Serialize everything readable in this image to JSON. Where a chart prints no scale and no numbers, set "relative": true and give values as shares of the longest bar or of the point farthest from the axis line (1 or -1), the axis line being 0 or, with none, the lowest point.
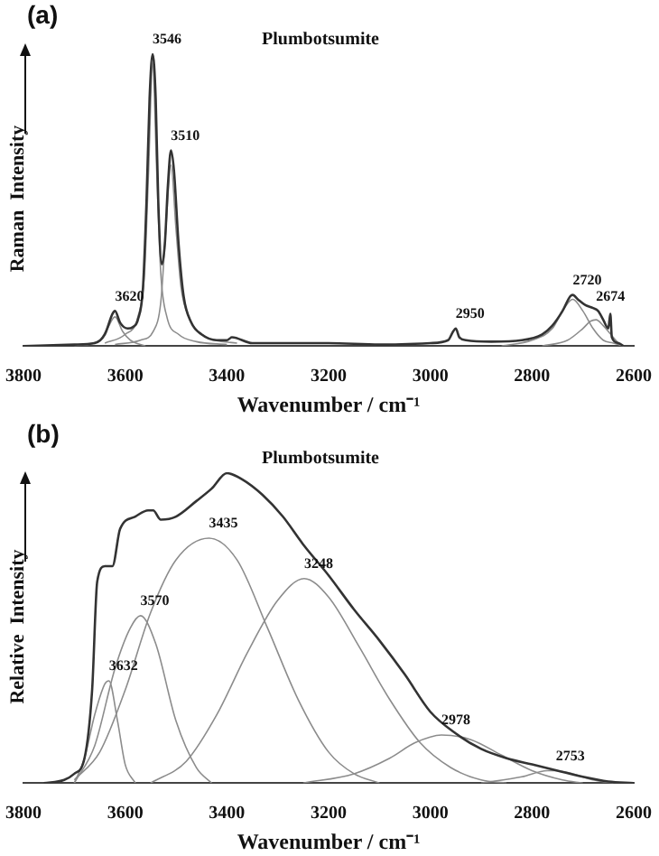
{
  "chart_data": [
    {
      "type": "line",
      "title": "Plumbotsumite",
      "xlabel": "Wavenumber / cm⁻¹",
      "ylabel": "Raman  Intensity",
      "relative": true,
      "grid": false,
      "legend": false,
      "marker": "none",
      "line_style": "solid",
      "xlim": [
        3800,
        2600
      ],
      "xticks": [
        3800,
        3600,
        3400,
        3200,
        3000,
        2800,
        2600
      ],
      "annotations": [
        "(a)",
        {
          "text": "3546",
          "x": 3546,
          "y": 1
        },
        {
          "text": "3510",
          "x": 3510,
          "y": 0.67
        },
        {
          "text": "3620",
          "x": 3620,
          "y": 0.12
        },
        {
          "text": "2950",
          "x": 2950,
          "y": 0.06
        },
        {
          "text": "2720",
          "x": 2720,
          "y": 0.175
        },
        {
          "text": "2674",
          "x": 2674,
          "y": 0.12
        }
      ],
      "series": [
        {
          "color": "#333333",
          "x": [
            3800,
            3700,
            3660,
            3640,
            3625,
            3620,
            3610,
            3595,
            3585,
            3575,
            3565,
            3558,
            3552,
            3546,
            3540,
            3535,
            3528,
            3522,
            3516,
            3510,
            3504,
            3495,
            3485,
            3470,
            3450,
            3420,
            3400,
            3390,
            3350,
            3300,
            3200,
            3100,
            3000,
            2965,
            2955,
            2950,
            2943,
            2930,
            2880,
            2820,
            2780,
            2760,
            2740,
            2725,
            2720,
            2710,
            2695,
            2680,
            2670,
            2660,
            2650,
            2646,
            2643,
            2630,
            2620
          ],
          "values": [
            0,
            0.005,
            0.01,
            0.04,
            0.11,
            0.12,
            0.08,
            0.06,
            0.065,
            0.09,
            0.2,
            0.5,
            0.85,
            1,
            0.85,
            0.5,
            0.28,
            0.35,
            0.55,
            0.67,
            0.6,
            0.35,
            0.17,
            0.08,
            0.04,
            0.02,
            0.02,
            0.03,
            0.01,
            0.01,
            0.01,
            0.005,
            0.01,
            0.02,
            0.05,
            0.06,
            0.03,
            0.02,
            0.015,
            0.02,
            0.04,
            0.07,
            0.12,
            0.17,
            0.175,
            0.16,
            0.14,
            0.13,
            0.12,
            0.09,
            0.06,
            0.11,
            0.03,
            0.01,
            0
          ]
        },
        {
          "color": "#8c8c8c",
          "x": [
            3700,
            3650,
            3635,
            3620,
            3605,
            3590,
            3560
          ],
          "values": [
            0,
            0.02,
            0.06,
            0.1,
            0.05,
            0.02,
            0
          ]
        },
        {
          "color": "#8c8c8c",
          "x": [
            3640,
            3600,
            3575,
            3562,
            3554,
            3546,
            3538,
            3530,
            3518,
            3495,
            3460,
            3400
          ],
          "values": [
            0.01,
            0.04,
            0.1,
            0.25,
            0.6,
            0.97,
            0.6,
            0.25,
            0.1,
            0.04,
            0.015,
            0.005
          ]
        },
        {
          "color": "#8c8c8c",
          "x": [
            3620,
            3570,
            3545,
            3530,
            3520,
            3510,
            3500,
            3490,
            3475,
            3440,
            3380
          ],
          "values": [
            0.005,
            0.02,
            0.05,
            0.15,
            0.4,
            0.62,
            0.4,
            0.2,
            0.1,
            0.03,
            0.01
          ]
        },
        {
          "color": "#8c8c8c",
          "x": [
            2860,
            2800,
            2760,
            2740,
            2720,
            2700,
            2680,
            2660,
            2640,
            2620
          ],
          "values": [
            0,
            0.02,
            0.06,
            0.12,
            0.16,
            0.12,
            0.06,
            0.02,
            0.01,
            0
          ]
        },
        {
          "color": "#8c8c8c",
          "x": [
            2780,
            2730,
            2700,
            2685,
            2674,
            2660,
            2645,
            2630,
            2620
          ],
          "values": [
            0,
            0.02,
            0.06,
            0.085,
            0.09,
            0.07,
            0.04,
            0.01,
            0
          ]
        }
      ]
    },
    {
      "type": "line",
      "title": "Plumbotsumite",
      "xlabel": "Wavenumber / cm⁻¹",
      "ylabel": "Relative  Intensity",
      "relative": true,
      "grid": false,
      "legend": false,
      "marker": "none",
      "line_style": "solid",
      "xlim": [
        3800,
        2600
      ],
      "xticks": [
        3800,
        3600,
        3400,
        3200,
        3000,
        2800,
        2600
      ],
      "annotations": [
        "(b)",
        {
          "text": "3632",
          "x": 3632,
          "y": 0.33
        },
        {
          "text": "3570",
          "x": 3570,
          "y": 0.54
        },
        {
          "text": "3435",
          "x": 3435,
          "y": 0.79
        },
        {
          "text": "3248",
          "x": 3248,
          "y": 0.66
        },
        {
          "text": "2978",
          "x": 2978,
          "y": 0.155
        },
        {
          "text": "2753",
          "x": 2753,
          "y": 0.04
        }
      ],
      "series": [
        {
          "color": "#333333",
          "x": [
            3760,
            3720,
            3700,
            3680,
            3665,
            3655,
            3640,
            3625,
            3610,
            3580,
            3555,
            3545,
            3530,
            3500,
            3460,
            3430,
            3400,
            3370,
            3330,
            3290,
            3250,
            3200,
            3150,
            3100,
            3050,
            3000,
            2950,
            2900,
            2850,
            2800,
            2750,
            2700,
            2650,
            2600
          ],
          "values": [
            0,
            0.01,
            0.03,
            0.08,
            0.3,
            0.65,
            0.7,
            0.7,
            0.82,
            0.86,
            0.88,
            0.88,
            0.85,
            0.86,
            0.91,
            0.95,
            1,
            0.98,
            0.93,
            0.86,
            0.77,
            0.67,
            0.56,
            0.46,
            0.35,
            0.23,
            0.16,
            0.11,
            0.08,
            0.06,
            0.04,
            0.02,
            0.005,
            0
          ]
        },
        {
          "color": "#8c8c8c",
          "x": [
            3700,
            3680,
            3660,
            3640,
            3632,
            3615,
            3600,
            3580
          ],
          "values": [
            0,
            0.08,
            0.22,
            0.32,
            0.33,
            0.2,
            0.06,
            0
          ]
        },
        {
          "color": "#8c8c8c",
          "x": [
            3700,
            3660,
            3620,
            3590,
            3570,
            3540,
            3500,
            3460,
            3430
          ],
          "values": [
            0,
            0.12,
            0.37,
            0.5,
            0.54,
            0.45,
            0.2,
            0.05,
            0
          ]
        },
        {
          "color": "#8c8c8c",
          "x": [
            3700,
            3650,
            3600,
            3550,
            3500,
            3435,
            3380,
            3320,
            3260,
            3200,
            3150,
            3100
          ],
          "values": [
            0.01,
            0.1,
            0.3,
            0.55,
            0.72,
            0.79,
            0.72,
            0.5,
            0.27,
            0.1,
            0.03,
            0
          ]
        },
        {
          "color": "#8c8c8c",
          "x": [
            3550,
            3480,
            3420,
            3360,
            3300,
            3248,
            3200,
            3140,
            3080,
            3020,
            2960,
            2900,
            2850
          ],
          "values": [
            0,
            0.07,
            0.22,
            0.42,
            0.59,
            0.66,
            0.6,
            0.44,
            0.27,
            0.13,
            0.05,
            0.01,
            0
          ]
        },
        {
          "color": "#8c8c8c",
          "x": [
            3250,
            3150,
            3080,
            3030,
            2978,
            2920,
            2860,
            2800,
            2740,
            2700
          ],
          "values": [
            0,
            0.03,
            0.08,
            0.13,
            0.155,
            0.14,
            0.09,
            0.04,
            0.01,
            0
          ]
        },
        {
          "color": "#8c8c8c",
          "x": [
            2900,
            2820,
            2770,
            2753,
            2720,
            2680,
            2640
          ],
          "values": [
            0,
            0.02,
            0.04,
            0.04,
            0.03,
            0.01,
            0
          ]
        }
      ]
    }
  ]
}
